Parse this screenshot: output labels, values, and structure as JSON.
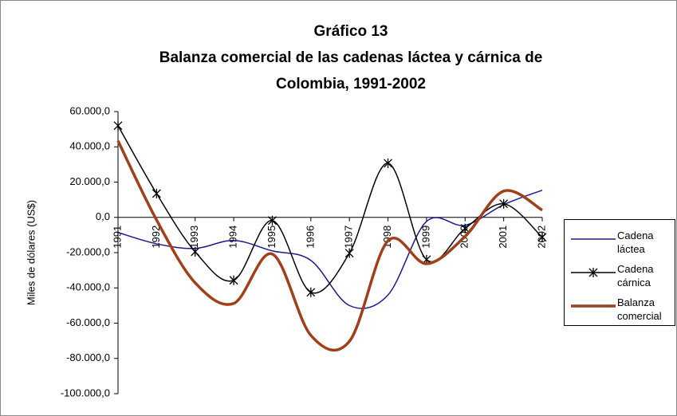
{
  "chart_data": {
    "type": "line",
    "title": [
      "Gráfico 13",
      "Balanza comercial de las cadenas láctea y cárnica de",
      "Colombia, 1991-2002"
    ],
    "y_label": "Miles de dólares (US$)",
    "categories": [
      "1991",
      "1992",
      "1993",
      "1994",
      "1995",
      "1996",
      "1997",
      "1998",
      "1999",
      "2000",
      "2001",
      "2002"
    ],
    "series": [
      {
        "name": "Cadena láctea",
        "color": "#1c1c8c",
        "width": 1.5,
        "marker": false,
        "values": [
          -8600,
          -15000,
          -17600,
          -13100,
          -19000,
          -24400,
          -50000,
          -44000,
          -2300,
          -4500,
          7200,
          15400
        ]
      },
      {
        "name": "Cadena cárnica",
        "color": "#000000",
        "width": 1.5,
        "marker": true,
        "values": [
          52000,
          13500,
          -19500,
          -35700,
          -1800,
          -42500,
          -20300,
          30700,
          -24000,
          -6300,
          7700,
          -11300
        ]
      },
      {
        "name": "Balanza comercial",
        "color": "#a0401a",
        "width": 3.5,
        "marker": false,
        "values": [
          43400,
          -1500,
          -37100,
          -48800,
          -20800,
          -66900,
          -70300,
          -13300,
          -26300,
          -10800,
          14900,
          4100
        ]
      }
    ],
    "ylim": [
      -100000,
      60000
    ],
    "yticks": [
      {
        "value": -100000,
        "label": "-100.000,0"
      },
      {
        "value": -80000,
        "label": "-80.000,0"
      },
      {
        "value": -60000,
        "label": "-60.000,0"
      },
      {
        "value": -40000,
        "label": "-40.000,0"
      },
      {
        "value": -20000,
        "label": "-20.000,0"
      },
      {
        "value": 0,
        "label": "0,0"
      },
      {
        "value": 20000,
        "label": "20.000,0"
      },
      {
        "value": 40000,
        "label": "40.000,0"
      },
      {
        "value": 60000,
        "label": "60.000,0"
      }
    ],
    "smooth": true,
    "legend": "right"
  }
}
